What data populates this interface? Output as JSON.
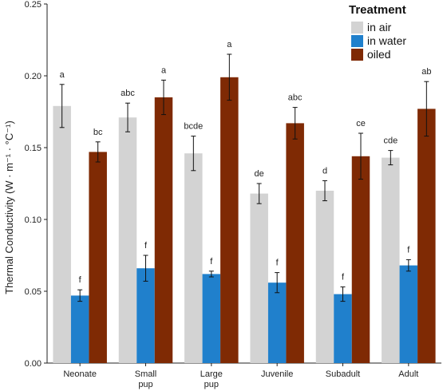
{
  "chart_data": {
    "type": "bar",
    "title": "",
    "xlabel": "",
    "ylabel": "Thermal Conductivity (W · m⁻¹ · °C⁻¹)",
    "ylim": [
      0,
      0.25
    ],
    "yticks": [
      "0.00",
      "0.05",
      "0.10",
      "0.15",
      "0.20",
      "0.25"
    ],
    "grid": false,
    "legend": {
      "title": "Treatment",
      "placement": "top-right"
    },
    "categories": [
      {
        "lines": [
          "Neonate"
        ]
      },
      {
        "lines": [
          "Small",
          "pup"
        ]
      },
      {
        "lines": [
          "Large",
          "pup"
        ]
      },
      {
        "lines": [
          "Juvenile"
        ]
      },
      {
        "lines": [
          "Subadult"
        ]
      },
      {
        "lines": [
          "Adult"
        ]
      }
    ],
    "series": [
      {
        "name": "in air",
        "color": "#d3d3d3",
        "values": [
          0.179,
          0.171,
          0.146,
          0.118,
          0.12,
          0.143
        ],
        "error": [
          0.015,
          0.01,
          0.012,
          0.007,
          0.007,
          0.005
        ],
        "letters": [
          "a",
          "abc",
          "bcde",
          "de",
          "d",
          "cde"
        ]
      },
      {
        "name": "in water",
        "color": "#2080cc",
        "values": [
          0.047,
          0.066,
          0.062,
          0.056,
          0.048,
          0.068
        ],
        "error": [
          0.004,
          0.009,
          0.002,
          0.007,
          0.005,
          0.004
        ],
        "letters": [
          "f",
          "f",
          "f",
          "f",
          "f",
          "f"
        ]
      },
      {
        "name": "oiled",
        "color": "#7f2a04",
        "values": [
          0.147,
          0.185,
          0.199,
          0.167,
          0.144,
          0.177
        ],
        "error": [
          0.007,
          0.012,
          0.016,
          0.011,
          0.016,
          0.019
        ],
        "letters": [
          "bc",
          "a",
          "a",
          "abc",
          "ce",
          "ab"
        ]
      }
    ]
  }
}
